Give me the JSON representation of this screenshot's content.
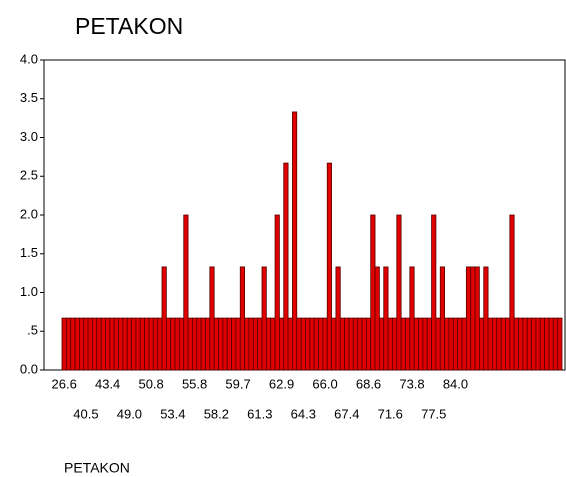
{
  "chart_data": {
    "type": "bar",
    "title": "PETAKON",
    "x_label": "PETAKON",
    "categories": [
      "26.6",
      null,
      null,
      null,
      null,
      "40.5",
      null,
      null,
      null,
      null,
      "43.4",
      null,
      null,
      null,
      null,
      "49.0",
      null,
      null,
      null,
      null,
      "50.8",
      null,
      null,
      null,
      null,
      "53.4",
      null,
      null,
      null,
      null,
      "55.8",
      null,
      null,
      null,
      null,
      "58.2",
      null,
      null,
      null,
      null,
      "59.7",
      null,
      null,
      null,
      null,
      "61.3",
      null,
      null,
      null,
      null,
      "62.9",
      null,
      null,
      null,
      null,
      "64.3",
      null,
      null,
      null,
      null,
      "66.0",
      null,
      null,
      null,
      null,
      "67.4",
      null,
      null,
      null,
      null,
      "68.6",
      null,
      null,
      null,
      null,
      "71.6",
      null,
      null,
      null,
      null,
      "73.8",
      null,
      null,
      null,
      null,
      "77.5",
      null,
      null,
      null,
      null,
      "84.0",
      null,
      null,
      null,
      null,
      null,
      null,
      null,
      null,
      null,
      null,
      null,
      null,
      null,
      null,
      null,
      null,
      null,
      null,
      null,
      null,
      null,
      null,
      null,
      null
    ],
    "values": [
      0.67,
      0.67,
      0.67,
      0.67,
      0.67,
      0.67,
      0.67,
      0.67,
      0.67,
      0.67,
      0.67,
      0.67,
      0.67,
      0.67,
      0.67,
      0.67,
      0.67,
      0.67,
      0.67,
      0.67,
      0.67,
      0.67,
      0.67,
      1.33,
      0.67,
      0.67,
      0.67,
      0.67,
      2,
      0.67,
      0.67,
      0.67,
      0.67,
      0.67,
      1.33,
      0.67,
      0.67,
      0.67,
      0.67,
      0.67,
      0.67,
      1.33,
      0.67,
      0.67,
      0.67,
      0.67,
      1.33,
      0.67,
      0.67,
      2,
      0.67,
      2.67,
      0.67,
      3.33,
      0.67,
      0.67,
      0.67,
      0.67,
      0.67,
      0.67,
      0.67,
      2.67,
      0.67,
      1.33,
      0.67,
      0.67,
      0.67,
      0.67,
      0.67,
      0.67,
      0.67,
      2,
      1.33,
      0.67,
      1.33,
      0.67,
      0.67,
      2,
      0.67,
      0.67,
      1.33,
      0.67,
      0.67,
      0.67,
      0.67,
      2,
      0.67,
      1.33,
      0.67,
      0.67,
      0.67,
      0.67,
      0.67,
      1.33,
      1.33,
      1.33,
      0.67,
      1.33,
      0.67,
      0.67,
      0.67,
      0.67,
      0.67,
      2,
      0.67,
      0.67,
      0.67,
      0.67,
      0.67,
      0.67,
      0.67,
      0.67,
      0.67,
      0.67,
      0.67
    ],
    "color": "#e00000",
    "ylim": [
      0,
      4
    ],
    "yticks": [
      {
        "value": 0,
        "label": "0.0"
      },
      {
        "value": 0.5,
        "label": ".5"
      },
      {
        "value": 1,
        "label": "1.0"
      },
      {
        "value": 1.5,
        "label": "1.5"
      },
      {
        "value": 2,
        "label": "2.0"
      },
      {
        "value": 2.5,
        "label": "2.5"
      },
      {
        "value": 3,
        "label": "3.0"
      },
      {
        "value": 3.5,
        "label": "3.5"
      },
      {
        "value": 4,
        "label": "4.0"
      }
    ],
    "grid": false
  }
}
